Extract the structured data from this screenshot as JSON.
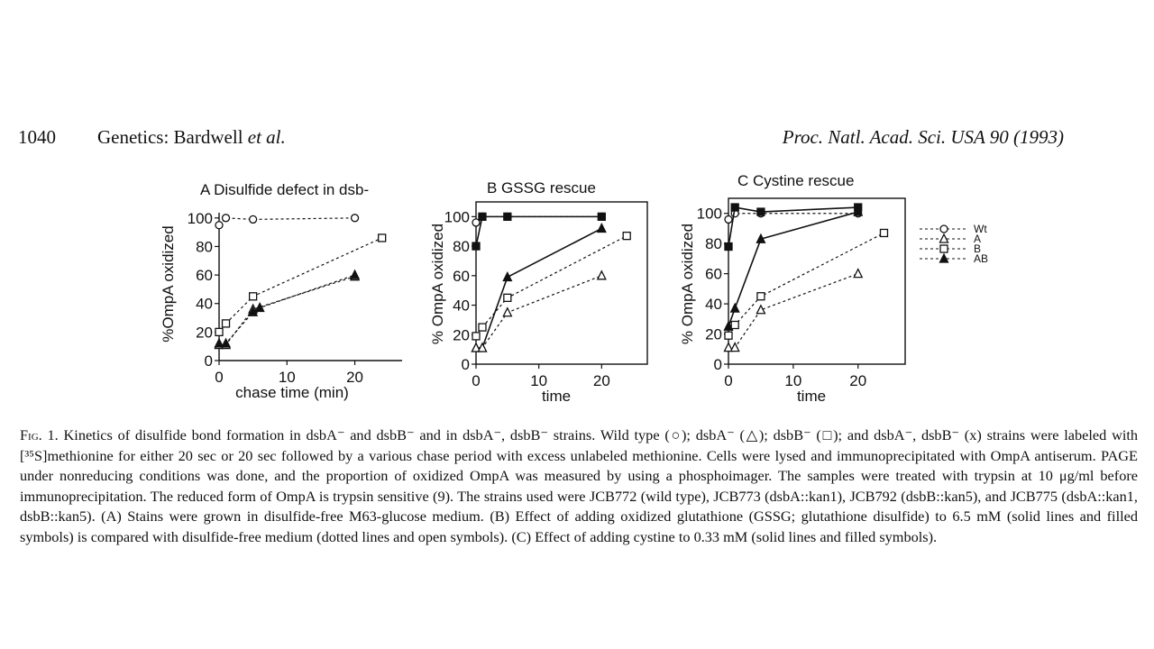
{
  "header": {
    "page_number": "1040",
    "running_title": "Genetics: Bardwell",
    "running_title_italic": "et al.",
    "journal": "Proc. Natl. Acad. Sci. USA 90 (1993)"
  },
  "legend": {
    "labels": [
      "Wt",
      "A",
      "B",
      "AB"
    ]
  },
  "chart_data": [
    {
      "type": "line",
      "panel": "A",
      "title": "Disulfide defect in dsb-",
      "xlabel": "chase time (min)",
      "ylabel": "%OmpA oxidized",
      "xlim": [
        0,
        24
      ],
      "ylim": [
        0,
        110
      ],
      "xticks": [
        "0",
        "10",
        "20"
      ],
      "yticks": [
        "0",
        "20",
        "40",
        "60",
        "80",
        "100"
      ],
      "series": [
        {
          "name": "Wt",
          "style": "dotted",
          "marker": "circle-open",
          "x": [
            0,
            1,
            5,
            20
          ],
          "y": [
            95,
            100,
            99,
            100
          ]
        },
        {
          "name": "A",
          "style": "dotted",
          "marker": "triangle-open",
          "x": [
            0,
            1,
            5,
            20
          ],
          "y": [
            11,
            11,
            36,
            59
          ]
        },
        {
          "name": "B",
          "style": "dotted",
          "marker": "square-open",
          "x": [
            0,
            1,
            5,
            24
          ],
          "y": [
            20,
            26,
            45,
            86
          ]
        },
        {
          "name": "AB",
          "style": "dotted",
          "marker": "triangle-filled",
          "x": [
            0,
            1,
            5,
            6,
            20
          ],
          "y": [
            12,
            12,
            34,
            37,
            60
          ]
        }
      ]
    },
    {
      "type": "line",
      "panel": "B",
      "title": "GSSG rescue",
      "xlabel": "time",
      "ylabel": "% OmpA oxidized",
      "xlim": [
        0,
        24
      ],
      "ylim": [
        0,
        110
      ],
      "xticks": [
        "0",
        "10",
        "20"
      ],
      "yticks": [
        "0",
        "20",
        "40",
        "60",
        "80",
        "100"
      ],
      "series": [
        {
          "name": "Wt",
          "style": "dotted",
          "marker": "circle-open",
          "x": [
            0,
            1,
            5,
            20
          ],
          "y": [
            96,
            100,
            100,
            100
          ]
        },
        {
          "name": "Wt",
          "style": "solid",
          "marker": "square-filled",
          "x": [
            0,
            1,
            5,
            20
          ],
          "y": [
            80,
            100,
            100,
            100
          ]
        },
        {
          "name": "A",
          "style": "solid",
          "marker": "triangle-filled",
          "x": [
            0,
            1,
            5,
            20
          ],
          "y": [
            11,
            11,
            59,
            92
          ]
        },
        {
          "name": "B",
          "style": "dotted",
          "marker": "square-open",
          "x": [
            0,
            1,
            5,
            24
          ],
          "y": [
            19,
            25,
            45,
            87
          ]
        },
        {
          "name": "A",
          "style": "dotted",
          "marker": "triangle-open",
          "x": [
            0,
            1,
            5,
            20
          ],
          "y": [
            11,
            11,
            35,
            60
          ]
        }
      ]
    },
    {
      "type": "line",
      "panel": "C",
      "title": "Cystine rescue",
      "xlabel": "time",
      "ylabel": "% OmpA oxidized",
      "xlim": [
        0,
        24
      ],
      "ylim": [
        0,
        110
      ],
      "xticks": [
        "0",
        "10",
        "20"
      ],
      "yticks": [
        "0",
        "20",
        "40",
        "60",
        "80",
        "100"
      ],
      "series": [
        {
          "name": "Wt",
          "style": "dotted",
          "marker": "circle-open",
          "x": [
            0,
            1,
            5,
            20
          ],
          "y": [
            96,
            100,
            100,
            100
          ]
        },
        {
          "name": "Wt",
          "style": "solid",
          "marker": "square-filled",
          "x": [
            0,
            1,
            5,
            20
          ],
          "y": [
            78,
            104,
            101,
            104
          ]
        },
        {
          "name": "A",
          "style": "solid",
          "marker": "triangle-filled",
          "x": [
            0,
            1,
            5,
            20
          ],
          "y": [
            25,
            37,
            83,
            101
          ]
        },
        {
          "name": "B",
          "style": "dotted",
          "marker": "square-open",
          "x": [
            0,
            1,
            5,
            24
          ],
          "y": [
            19,
            26,
            45,
            87
          ]
        },
        {
          "name": "A",
          "style": "dotted",
          "marker": "triangle-open",
          "x": [
            0,
            1,
            5,
            20
          ],
          "y": [
            11,
            11,
            36,
            60
          ]
        }
      ]
    }
  ],
  "caption": {
    "lead": "Fig. 1.",
    "text": "Kinetics of disulfide bond formation in dsbA⁻ and dsbB⁻ and in dsbA⁻, dsbB⁻ strains. Wild type (○); dsbA⁻ (△); dsbB⁻ (□); and dsbA⁻, dsbB⁻ (x) strains were labeled with [³⁵S]methionine for either 20 sec or 20 sec followed by a various chase period with excess unlabeled methionine. Cells were lysed and immunoprecipitated with OmpA antiserum. PAGE under nonreducing conditions was done, and the proportion of oxidized OmpA was measured by using a phosphoimager. The samples were treated with trypsin at 10 μg/ml before immunoprecipitation. The reduced form of OmpA is trypsin sensitive (9). The strains used were JCB772 (wild type), JCB773 (dsbA::kan1), JCB792 (dsbB::kan5), and JCB775 (dsbA::kan1, dsbB::kan5). (A) Stains were grown in disulfide-free M63-glucose medium. (B) Effect of adding oxidized glutathione (GSSG; glutathione disulfide) to 6.5 mM (solid lines and filled symbols) is compared with disulfide-free medium (dotted lines and open symbols). (C) Effect of adding cystine to 0.33 mM (solid lines and filled symbols)."
  }
}
